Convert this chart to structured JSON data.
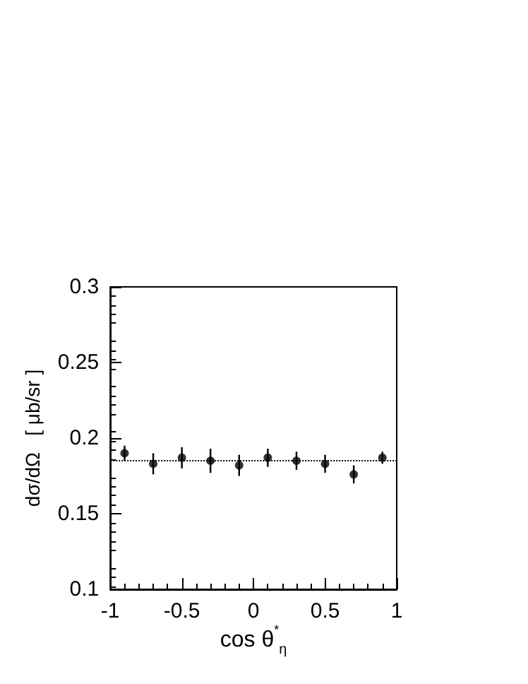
{
  "chart_data": {
    "type": "scatter",
    "xlabel": "cos θ$^{*}$$_{η}$",
    "ylabel": "dσ/dΩ   [ μb/sr ]",
    "x": [
      -0.9,
      -0.7,
      -0.5,
      -0.3,
      -0.1,
      0.1,
      0.3,
      0.5,
      0.7,
      0.9
    ],
    "series": [
      {
        "color": "#000000",
        "values": [
          0.19,
          0.183,
          0.187,
          0.185,
          0.182,
          0.187,
          0.185,
          0.183,
          0.176,
          0.187
        ],
        "errors": [
          0.005,
          0.007,
          0.007,
          0.008,
          0.007,
          0.006,
          0.006,
          0.006,
          0.006,
          0.004
        ]
      }
    ],
    "xlim": [
      -1,
      1
    ],
    "xticks": [
      -1,
      -0.5,
      0,
      0.5,
      1
    ],
    "ylim": [
      0.1,
      0.3
    ],
    "yticks": [
      0.1,
      0.15,
      0.2,
      0.25,
      0.3
    ],
    "ref_lines": [
      {
        "axis": "y",
        "value": 0.185,
        "line_style": "dotted",
        "color": "#000000"
      }
    ],
    "marker": "circle",
    "grid": false
  }
}
